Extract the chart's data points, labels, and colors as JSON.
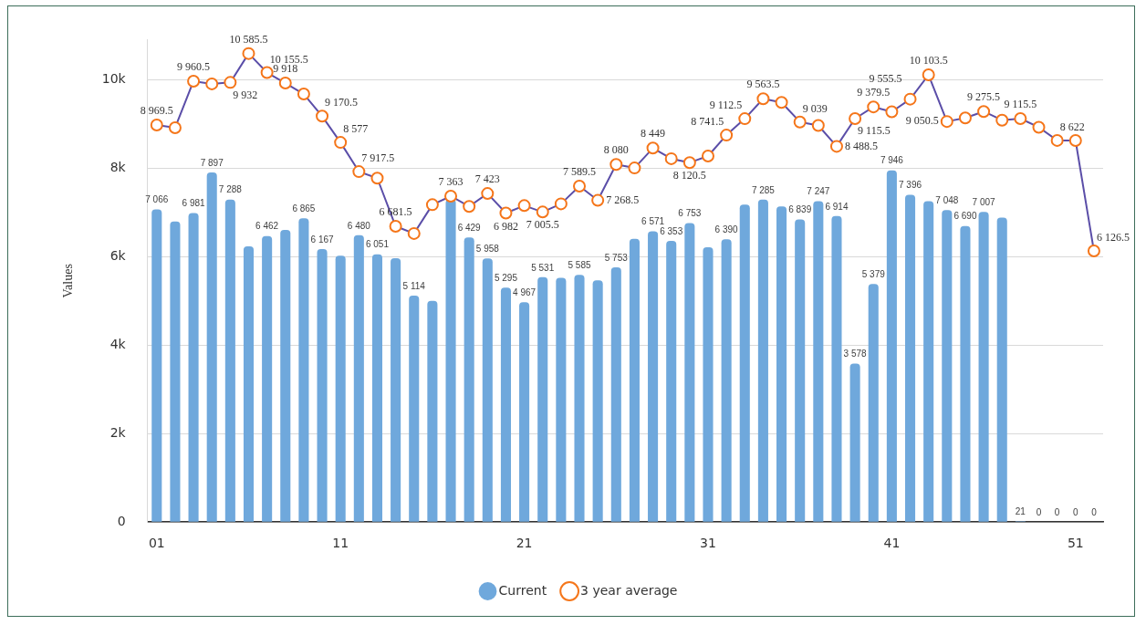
{
  "chart_data": {
    "type": "bar",
    "categories": [
      "01",
      null,
      null,
      null,
      null,
      null,
      null,
      null,
      null,
      null,
      "11",
      null,
      null,
      null,
      null,
      null,
      null,
      null,
      null,
      null,
      "21",
      null,
      null,
      null,
      null,
      null,
      null,
      null,
      null,
      null,
      "31",
      null,
      null,
      null,
      null,
      null,
      null,
      null,
      null,
      null,
      "41",
      null,
      null,
      null,
      null,
      null,
      null,
      null,
      null,
      null,
      "51",
      null
    ],
    "ylabel": "Values",
    "ylim": [
      0,
      10900
    ],
    "yticks": [
      {
        "value": 0,
        "label": "0"
      },
      {
        "value": 2000,
        "label": "2k"
      },
      {
        "value": 4000,
        "label": "4k"
      },
      {
        "value": 6000,
        "label": "6k"
      },
      {
        "value": 8000,
        "label": "8k"
      },
      {
        "value": 10000,
        "label": "10k"
      }
    ],
    "grid": "y",
    "legend": "bottom",
    "series": [
      {
        "name": "Current",
        "color": "#6fa8dc",
        "values": [
          7066,
          6790,
          6981,
          7897,
          7288,
          6230,
          6462,
          6600,
          6865,
          6167,
          6020,
          6480,
          6051,
          5960,
          5114,
          5000,
          7290,
          6429,
          5958,
          5295,
          4967,
          5531,
          5520,
          5585,
          5460,
          5753,
          6400,
          6571,
          6353,
          6753,
          6210,
          6390,
          7170,
          7285,
          7130,
          6839,
          7247,
          6914,
          3578,
          5379,
          7946,
          7396,
          7250,
          7048,
          6690,
          7007,
          6880,
          21,
          0,
          0,
          0,
          0
        ],
        "value_labels": [
          "7 066",
          null,
          "6 981",
          "7 897",
          "7 288",
          null,
          "6 462",
          null,
          "6 865",
          "6 167",
          null,
          "6 480",
          "6 051",
          null,
          "5 114",
          null,
          null,
          "6 429",
          "5 958",
          "5 295",
          "4 967",
          "5 531",
          null,
          "5 585",
          null,
          "5 753",
          null,
          "6 571",
          "6 353",
          "6 753",
          null,
          "6 390",
          null,
          "7 285",
          null,
          "6 839",
          "7 247",
          "6 914",
          "3 578",
          "5 379",
          "7 946",
          "7 396",
          null,
          "7 048",
          "6 690",
          "7 007",
          null,
          "21",
          "0",
          "0",
          "0",
          "0"
        ]
      },
      {
        "name": "3 year average",
        "type": "line",
        "color": "#5b4ea8",
        "marker": "circle",
        "values": [
          8969.5,
          8910,
          9960.5,
          9900,
          9932,
          10585.5,
          10155.5,
          9918,
          9670,
          9170.5,
          8577,
          7917.5,
          7770,
          6681.5,
          6520,
          7170,
          7363,
          7130,
          7423,
          6982,
          7150,
          7005.5,
          7190,
          7589.5,
          7268.5,
          8080,
          8000,
          8449,
          8210,
          8120.5,
          8270,
          8741.5,
          9112.5,
          9563.5,
          9480,
          9039,
          8960,
          8488.5,
          9115.5,
          9379.5,
          9270,
          9555.5,
          10103.5,
          9050.5,
          9130,
          9275.5,
          9080,
          9115.5,
          8920,
          8622,
          8620,
          6126.5
        ],
        "value_labels": [
          "8 969.5",
          null,
          "9 960.5",
          null,
          "9 932",
          "10 585.5",
          "10 155.5",
          "9 918",
          null,
          "9 170.5",
          "8 577",
          "7 917.5",
          null,
          "6 681.5",
          null,
          null,
          "7 363",
          null,
          "7 423",
          "6 982",
          null,
          "7 005.5",
          null,
          "7 589.5",
          "7 268.5",
          "8 080",
          null,
          "8 449",
          null,
          "8 120.5",
          null,
          "8 741.5",
          "9 112.5",
          "9 563.5",
          null,
          "9 039",
          null,
          "8 488.5",
          "9 115.5",
          "9 379.5",
          null,
          "9 555.5",
          "10 103.5",
          "9 050.5",
          null,
          "9 275.5",
          null,
          "9 115.5",
          null,
          "8 622",
          null,
          "6 126.5"
        ]
      }
    ]
  }
}
